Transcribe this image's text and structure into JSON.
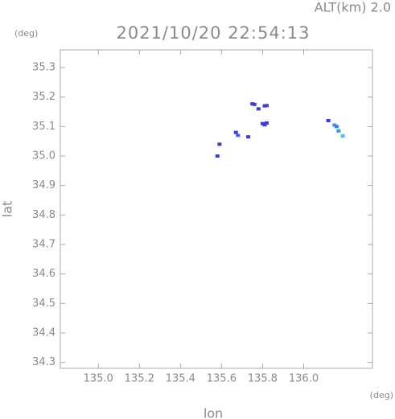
{
  "chart_data": {
    "type": "scatter",
    "title": "2021/10/20 22:54:13",
    "altitude": "ALT(km) 2.0",
    "y_unit": "(deg)",
    "x_unit": "(deg)",
    "x_label": "lon",
    "y_label": "lat",
    "xlim": [
      134.815,
      136.335
    ],
    "ylim": [
      34.28,
      35.36
    ],
    "xticks": [
      {
        "value": 135.0,
        "label": "135.0"
      },
      135.2,
      135.4,
      135.6,
      135.8,
      {
        "value": 136.0,
        "label": "136.0"
      }
    ],
    "yticks": [
      34.3,
      34.4,
      34.5,
      34.6,
      34.7,
      34.8,
      34.9,
      {
        "value": 35.0,
        "label": "35.0"
      },
      35.1,
      35.2,
      35.3
    ],
    "x": [
      135.75,
      135.76,
      135.81,
      135.82,
      135.78,
      135.8,
      135.82,
      135.81,
      135.67,
      135.68,
      135.73,
      135.59,
      135.58,
      136.12,
      136.15,
      136.16,
      136.17,
      136.19
    ],
    "y": [
      35.177,
      35.175,
      35.17,
      35.171,
      35.16,
      35.11,
      35.112,
      35.106,
      35.08,
      35.07,
      35.065,
      35.04,
      35.0,
      35.12,
      35.105,
      35.1,
      35.085,
      35.068
    ],
    "colors": [
      "#3a3ae8",
      "#3a3ae8",
      "#3a3ae8",
      "#3a3ae8",
      "#3a3ae8",
      "#3a3ae8",
      "#3a3ae8",
      "#3a3ae8",
      "#3a3ae8",
      "#4060ff",
      "#3a3ae8",
      "#3a3ae8",
      "#3a3ae8",
      "#3a3ae8",
      "#3399ff",
      "#2f7bff",
      "#3399ff",
      "#44bbff"
    ]
  }
}
